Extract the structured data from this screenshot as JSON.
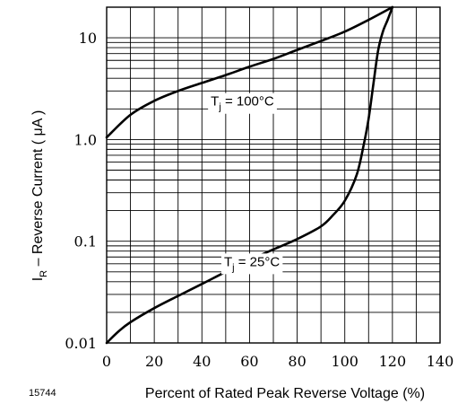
{
  "figure_id": "15744",
  "chart_data": {
    "type": "line",
    "xlabel": "Percent of Rated Peak Reverse Voltage (%)",
    "ylabel": "I_R – Reverse Current ( μA )",
    "ylabel_main": "I",
    "ylabel_sub": "R",
    "ylabel_rest": " – Reverse Current ( μA )",
    "xlim": [
      0,
      140
    ],
    "ylim": [
      0.01,
      20
    ],
    "yscale": "log",
    "grid": true,
    "x_ticks": [
      "0",
      "20",
      "40",
      "60",
      "80",
      "100",
      "120",
      "140"
    ],
    "y_ticks": [
      {
        "value": 0.01,
        "label": "0.01"
      },
      {
        "value": 0.1,
        "label": "0.1"
      },
      {
        "value": 1,
        "label": "1.0"
      },
      {
        "value": 10,
        "label": "10"
      }
    ],
    "series": [
      {
        "label_main": "T",
        "label_sub": "j",
        "label_rest": " = 100°C",
        "x": [
          0,
          10,
          20,
          30,
          40,
          50,
          60,
          70,
          80,
          90,
          100,
          110,
          120
        ],
        "y": [
          1.05,
          1.75,
          2.4,
          3.0,
          3.6,
          4.3,
          5.2,
          6.2,
          7.6,
          9.3,
          11.5,
          15,
          20
        ]
      },
      {
        "label_main": "T",
        "label_sub": "j",
        "label_rest": " = 25°C",
        "x": [
          0,
          5,
          10,
          20,
          30,
          40,
          50,
          60,
          70,
          80,
          90,
          95,
          100,
          105,
          108,
          110,
          112,
          114,
          116,
          118,
          120
        ],
        "y": [
          0.01,
          0.013,
          0.016,
          0.022,
          0.029,
          0.038,
          0.05,
          0.065,
          0.083,
          0.105,
          0.14,
          0.18,
          0.25,
          0.45,
          0.9,
          1.6,
          3.5,
          7.5,
          11.5,
          15,
          20
        ]
      }
    ]
  }
}
